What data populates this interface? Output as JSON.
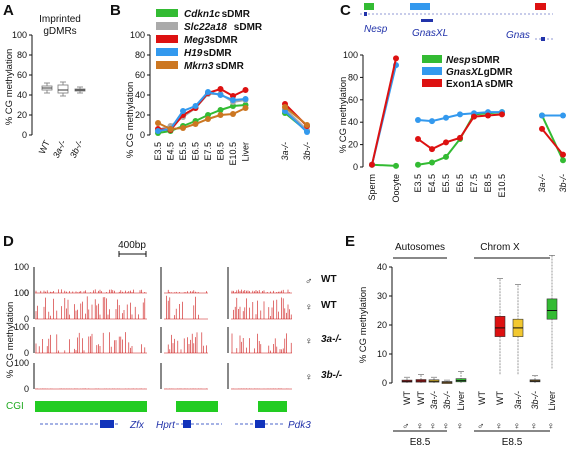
{
  "panels": {
    "A": {
      "label": "A",
      "title": "Imprinted gDMRs",
      "title_lines": [
        "Imprinted",
        "gDMRs"
      ]
    },
    "B": {
      "label": "B"
    },
    "C": {
      "label": "C"
    },
    "D": {
      "label": "D",
      "scale_label": "400bp",
      "cgi_label": "CGI"
    },
    "E": {
      "label": "E",
      "group_autosomes": "Autosomes",
      "group_x": "Chrom X",
      "stage": "E8.5"
    }
  },
  "chart_data": [
    {
      "id": "A",
      "type": "box",
      "title": "Imprinted gDMRs",
      "ylabel": "% CG methylation",
      "ylim": [
        0,
        100
      ],
      "yticks": [
        0,
        20,
        40,
        60,
        80,
        100
      ],
      "categories": [
        "WT",
        "3a-/-",
        "3b-/-"
      ],
      "boxes": [
        {
          "whisker_low": 42,
          "q1": 45,
          "median": 47,
          "q3": 49,
          "whisker_high": 52
        },
        {
          "whisker_low": 39,
          "q1": 42,
          "median": 45,
          "q3": 50,
          "whisker_high": 53
        },
        {
          "whisker_low": 42,
          "q1": 44,
          "median": 45,
          "q3": 46,
          "whisker_high": 48
        }
      ],
      "colors": {
        "box": "#ffffff",
        "edge": "#777777"
      }
    },
    {
      "id": "B",
      "type": "line",
      "ylabel": "% CG methylation",
      "ylim": [
        0,
        100
      ],
      "yticks": [
        0,
        20,
        40,
        60,
        80,
        100
      ],
      "categories": [
        "E3.5",
        "E4.5",
        "E5.5",
        "E6.5",
        "E7.5",
        "E8.5",
        "E10.5",
        "Liver"
      ],
      "categories_mutant": [
        "3a-/-",
        "3b-/-"
      ],
      "series": [
        {
          "name": "Cdkn1c",
          "suffix": " sDMR",
          "color": "#33bb33",
          "values": [
            2,
            4,
            9,
            14,
            20,
            25,
            29,
            30
          ],
          "mutant": [
            22,
            4
          ]
        },
        {
          "name": "Slc22a18",
          "suffix": " sDMR",
          "color": "#aaaaaa",
          "values": [
            5,
            9,
            18,
            27,
            41,
            41,
            33,
            35
          ],
          "mutant": [
            26,
            5
          ]
        },
        {
          "name": "Meg3",
          "suffix": " sDMR",
          "color": "#dd1111",
          "values": [
            6,
            5,
            20,
            27,
            42,
            46,
            39,
            45
          ],
          "mutant": [
            31,
            9
          ]
        },
        {
          "name": "H19",
          "suffix": " sDMR",
          "color": "#3399ee",
          "values": [
            4,
            6,
            24,
            29,
            43,
            40,
            35,
            36
          ],
          "mutant": [
            24,
            3
          ]
        },
        {
          "name": "Mkrn3",
          "suffix": " sDMR",
          "color": "#cc7722",
          "values": [
            12,
            6,
            7,
            11,
            16,
            20,
            21,
            27
          ],
          "mutant": [
            28,
            10
          ]
        }
      ]
    },
    {
      "id": "C",
      "type": "line",
      "ylabel": "% CG methylation",
      "ylim": [
        0,
        100
      ],
      "yticks": [
        0,
        20,
        40,
        60,
        80,
        100
      ],
      "categories_gametes": [
        "Sperm",
        "Oocyte"
      ],
      "categories": [
        "E3.5",
        "E4.5",
        "E5.5",
        "E6.5",
        "E7.5",
        "E8.5",
        "E10.5"
      ],
      "categories_mutant": [
        "3a-/-",
        "3b-/-"
      ],
      "series": [
        {
          "name": "Nesp",
          "suffix": " sDMR",
          "color": "#33bb33",
          "gametes": [
            2,
            1
          ],
          "values": [
            2,
            4,
            9,
            25,
            47,
            48,
            49
          ],
          "mutant": [
            46,
            6
          ]
        },
        {
          "name": "GnasXL",
          "suffix": " gDMR",
          "color": "#3399ee",
          "gametes": [
            2,
            91
          ],
          "values": [
            42,
            41,
            44,
            47,
            48,
            49,
            49
          ],
          "mutant": [
            46,
            46
          ]
        },
        {
          "name": "Exon1A",
          "suffix": " sDMR",
          "color": "#dd1111",
          "gametes": [
            2,
            97
          ],
          "values": [
            25,
            16,
            22,
            26,
            45,
            46,
            47
          ],
          "mutant": [
            34,
            11
          ]
        }
      ],
      "gene_track": {
        "genes": [
          "Nesp",
          "GnasXL",
          "Gnas"
        ],
        "region_colors": [
          "#33bb33",
          "#3399ee",
          "#dd1111"
        ]
      }
    },
    {
      "id": "D",
      "type": "bar",
      "ylabel": "% CG methylation",
      "ylim": [
        0,
        100
      ],
      "yticks": [
        0,
        100
      ],
      "tracks": [
        "♂ WT",
        "♀ WT",
        "♀ 3a-/-",
        "♀ 3b-/-"
      ],
      "track_labels": [
        {
          "symbol": "♂",
          "text": "WT",
          "italic": false
        },
        {
          "symbol": "♀",
          "text": "WT",
          "italic": false
        },
        {
          "symbol": "♀",
          "text": "3a-/-",
          "italic": true
        },
        {
          "symbol": "♀",
          "text": "3b-/-",
          "italic": true
        }
      ],
      "track_mean_levels": [
        8,
        50,
        45,
        1
      ],
      "genes": [
        "Zfx",
        "Hprt",
        "Pdk3"
      ],
      "colors": {
        "bars": "#cc1111",
        "cgi": "#22cc22",
        "gene": "#1133bb"
      }
    },
    {
      "id": "E",
      "type": "box",
      "ylabel": "% CG methylation",
      "ylim": [
        0,
        40
      ],
      "yticks": [
        0,
        10,
        20,
        30,
        40
      ],
      "groups": [
        "Autosomes",
        "Chrom X"
      ],
      "stage": "E8.5",
      "categories": [
        {
          "symbol": "♂",
          "text": "WT"
        },
        {
          "symbol": "♀",
          "text": "WT"
        },
        {
          "symbol": "♀",
          "text": "3a-/-"
        },
        {
          "symbol": "♀",
          "text": "3b-/-"
        },
        {
          "symbol": "♀",
          "text": "Liver"
        }
      ],
      "boxes": {
        "Autosomes": [
          {
            "whisker_low": 0,
            "q1": 0.3,
            "median": 0.6,
            "q3": 1.0,
            "whisker_high": 2.0,
            "color": "#dd1111"
          },
          {
            "whisker_low": 0,
            "q1": 0.3,
            "median": 0.7,
            "q3": 1.2,
            "whisker_high": 3.0,
            "color": "#dd1111"
          },
          {
            "whisker_low": 0,
            "q1": 0.3,
            "median": 0.6,
            "q3": 1.1,
            "whisker_high": 2.0,
            "color": "#f2c830"
          },
          {
            "whisker_low": 0,
            "q1": 0.1,
            "median": 0.3,
            "q3": 0.5,
            "whisker_high": 1.0,
            "color": "#bb8833"
          },
          {
            "whisker_low": 0,
            "q1": 0.4,
            "median": 0.8,
            "q3": 1.5,
            "whisker_high": 4.0,
            "color": "#33bb33"
          }
        ],
        "Chrom X": [
          {
            "whisker_low": 0,
            "q1": 0,
            "median": 0,
            "q3": 0,
            "whisker_high": 0,
            "color": "#dd1111"
          },
          {
            "whisker_low": 3,
            "q1": 16,
            "median": 19,
            "q3": 23,
            "whisker_high": 36,
            "color": "#dd1111"
          },
          {
            "whisker_low": 3,
            "q1": 16,
            "median": 19,
            "q3": 22,
            "whisker_high": 34,
            "color": "#f2c830"
          },
          {
            "whisker_low": 0,
            "q1": 0.4,
            "median": 0.7,
            "q3": 1.1,
            "whisker_high": 2.5,
            "color": "#bb8833"
          },
          {
            "whisker_low": 5,
            "q1": 22,
            "median": 25,
            "q3": 29,
            "whisker_high": 44,
            "color": "#33bb33"
          }
        ]
      }
    }
  ]
}
